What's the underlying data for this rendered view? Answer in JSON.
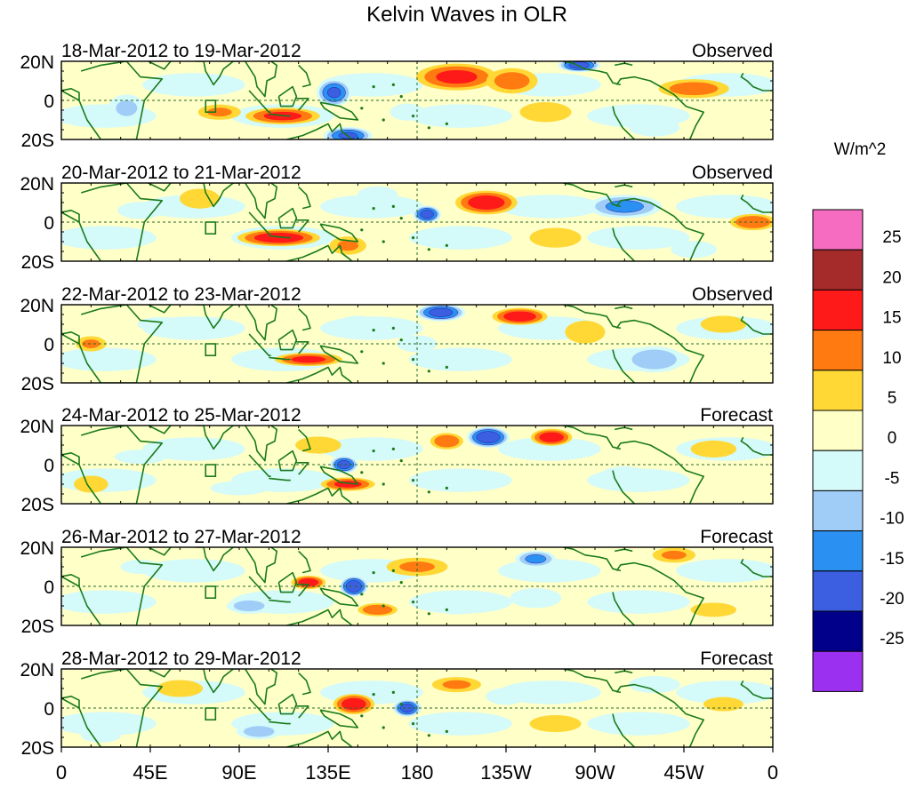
{
  "chart_data": {
    "type": "heatmap",
    "title": "Kelvin Waves in OLR",
    "variable": "OLR anomaly",
    "units": "W/m^2",
    "x_tick_labels": [
      "0",
      "45E",
      "90E",
      "135E",
      "180",
      "135W",
      "90W",
      "45W",
      "0"
    ],
    "y_tick_labels": [
      "20N",
      "0",
      "20S"
    ],
    "x_range_deg_east": [
      0,
      360
    ],
    "y_range_deg": [
      -20,
      20
    ],
    "colorbar": {
      "levels": [
        "25",
        "20",
        "15",
        "10",
        "5",
        "0",
        "-5",
        "-10",
        "-15",
        "-20",
        "-25"
      ],
      "colors": [
        "#f66cc0",
        "#a52a2a",
        "#ff1a1a",
        "#ff7a10",
        "#ffd836",
        "#ffffc8",
        "#d4fafa",
        "#a0cdf7",
        "#2a90f2",
        "#3b5fe0",
        "#00008b",
        "#9b30f0"
      ]
    },
    "panels": [
      {
        "period": "18-Mar-2012 to 19-Mar-2012",
        "status": "Observed",
        "anomalies": [
          {
            "lon": 200,
            "lat": 12,
            "val": 16,
            "rx": 24,
            "ry": 8
          },
          {
            "lon": 228,
            "lat": 10,
            "val": 12,
            "rx": 16,
            "ry": 8
          },
          {
            "lon": 138,
            "lat": 4,
            "val": -20,
            "rx": 10,
            "ry": 8
          },
          {
            "lon": 262,
            "lat": 18,
            "val": -22,
            "rx": 12,
            "ry": 4
          },
          {
            "lon": 112,
            "lat": -8,
            "val": 16,
            "rx": 22,
            "ry": 5
          },
          {
            "lon": 80,
            "lat": -6,
            "val": 10,
            "rx": 14,
            "ry": 5
          },
          {
            "lon": 145,
            "lat": -18,
            "val": -20,
            "rx": 14,
            "ry": 5
          },
          {
            "lon": 33,
            "lat": -4,
            "val": -10,
            "rx": 12,
            "ry": 9
          },
          {
            "lon": 320,
            "lat": 6,
            "val": 12,
            "rx": 22,
            "ry": 6
          },
          {
            "lon": 175,
            "lat": -6,
            "val": -8,
            "rx": 12,
            "ry": 6
          },
          {
            "lon": 245,
            "lat": -6,
            "val": 8,
            "rx": 18,
            "ry": 7
          },
          {
            "lon": 300,
            "lat": -14,
            "val": -6,
            "rx": 20,
            "ry": 7
          }
        ]
      },
      {
        "period": "20-Mar-2012 to 21-Mar-2012",
        "status": "Observed",
        "anomalies": [
          {
            "lon": 215,
            "lat": 10,
            "val": 18,
            "rx": 18,
            "ry": 7
          },
          {
            "lon": 185,
            "lat": 4,
            "val": -22,
            "rx": 8,
            "ry": 5
          },
          {
            "lon": 110,
            "lat": -8,
            "val": 18,
            "rx": 24,
            "ry": 5
          },
          {
            "lon": 145,
            "lat": -12,
            "val": 10,
            "rx": 12,
            "ry": 6
          },
          {
            "lon": 285,
            "lat": 8,
            "val": -16,
            "rx": 22,
            "ry": 7
          },
          {
            "lon": 350,
            "lat": 0,
            "val": 14,
            "rx": 14,
            "ry": 5
          },
          {
            "lon": 40,
            "lat": 6,
            "val": -8,
            "rx": 16,
            "ry": 6
          },
          {
            "lon": 70,
            "lat": 12,
            "val": 8,
            "rx": 14,
            "ry": 7
          },
          {
            "lon": 250,
            "lat": -8,
            "val": 8,
            "rx": 18,
            "ry": 7
          },
          {
            "lon": 160,
            "lat": 14,
            "val": -8,
            "rx": 14,
            "ry": 6
          },
          {
            "lon": 320,
            "lat": -14,
            "val": -8,
            "rx": 16,
            "ry": 6
          }
        ]
      },
      {
        "period": "22-Mar-2012 to 23-Mar-2012",
        "status": "Observed",
        "anomalies": [
          {
            "lon": 192,
            "lat": 16,
            "val": -22,
            "rx": 14,
            "ry": 5
          },
          {
            "lon": 232,
            "lat": 14,
            "val": 18,
            "rx": 16,
            "ry": 5
          },
          {
            "lon": 125,
            "lat": -8,
            "val": 16,
            "rx": 20,
            "ry": 4
          },
          {
            "lon": 180,
            "lat": 0,
            "val": -8,
            "rx": 14,
            "ry": 6
          },
          {
            "lon": 300,
            "lat": -8,
            "val": -14,
            "rx": 18,
            "ry": 8
          },
          {
            "lon": 15,
            "lat": 0,
            "val": 10,
            "rx": 10,
            "ry": 5
          },
          {
            "lon": 50,
            "lat": 10,
            "val": -8,
            "rx": 16,
            "ry": 5
          },
          {
            "lon": 265,
            "lat": 6,
            "val": 8,
            "rx": 14,
            "ry": 8
          },
          {
            "lon": 150,
            "lat": 10,
            "val": -8,
            "rx": 14,
            "ry": 6
          },
          {
            "lon": 335,
            "lat": 10,
            "val": 8,
            "rx": 16,
            "ry": 6
          }
        ]
      },
      {
        "period": "24-Mar-2012 to 25-Mar-2012",
        "status": "Forecast",
        "anomalies": [
          {
            "lon": 216,
            "lat": 14,
            "val": -24,
            "rx": 12,
            "ry": 6
          },
          {
            "lon": 195,
            "lat": 12,
            "val": 14,
            "rx": 10,
            "ry": 5
          },
          {
            "lon": 248,
            "lat": 14,
            "val": 18,
            "rx": 12,
            "ry": 5
          },
          {
            "lon": 143,
            "lat": 0,
            "val": -22,
            "rx": 8,
            "ry": 5
          },
          {
            "lon": 145,
            "lat": -10,
            "val": 16,
            "rx": 16,
            "ry": 4
          },
          {
            "lon": 130,
            "lat": 10,
            "val": 8,
            "rx": 16,
            "ry": 6
          },
          {
            "lon": 40,
            "lat": 4,
            "val": -8,
            "rx": 18,
            "ry": 5
          },
          {
            "lon": 90,
            "lat": -12,
            "val": -8,
            "rx": 20,
            "ry": 5
          },
          {
            "lon": 285,
            "lat": -6,
            "val": -8,
            "rx": 18,
            "ry": 7
          },
          {
            "lon": 15,
            "lat": -10,
            "val": 8,
            "rx": 12,
            "ry": 6
          },
          {
            "lon": 330,
            "lat": 8,
            "val": 8,
            "rx": 16,
            "ry": 6
          }
        ]
      },
      {
        "period": "26-Mar-2012 to 27-Mar-2012",
        "status": "Forecast",
        "anomalies": [
          {
            "lon": 148,
            "lat": 0,
            "val": -24,
            "rx": 8,
            "ry": 6
          },
          {
            "lon": 125,
            "lat": 2,
            "val": 18,
            "rx": 10,
            "ry": 4
          },
          {
            "lon": 240,
            "lat": 14,
            "val": -16,
            "rx": 12,
            "ry": 5
          },
          {
            "lon": 160,
            "lat": -12,
            "val": 14,
            "rx": 12,
            "ry": 4
          },
          {
            "lon": 180,
            "lat": 10,
            "val": 10,
            "rx": 20,
            "ry": 6
          },
          {
            "lon": 95,
            "lat": -10,
            "val": -12,
            "rx": 14,
            "ry": 5
          },
          {
            "lon": 310,
            "lat": 16,
            "val": 10,
            "rx": 14,
            "ry": 5
          },
          {
            "lon": 240,
            "lat": -6,
            "val": -8,
            "rx": 18,
            "ry": 7
          },
          {
            "lon": 40,
            "lat": 10,
            "val": -8,
            "rx": 14,
            "ry": 5
          },
          {
            "lon": 200,
            "lat": -10,
            "val": -8,
            "rx": 16,
            "ry": 6
          },
          {
            "lon": 330,
            "lat": -12,
            "val": 8,
            "rx": 16,
            "ry": 5
          }
        ]
      },
      {
        "period": "28-Mar-2012 to 29-Mar-2012",
        "status": "Forecast",
        "anomalies": [
          {
            "lon": 148,
            "lat": 2,
            "val": 18,
            "rx": 12,
            "ry": 6
          },
          {
            "lon": 175,
            "lat": 0,
            "val": -22,
            "rx": 8,
            "ry": 5
          },
          {
            "lon": 100,
            "lat": -12,
            "val": -12,
            "rx": 14,
            "ry": 5
          },
          {
            "lon": 200,
            "lat": 12,
            "val": 10,
            "rx": 16,
            "ry": 5
          },
          {
            "lon": 300,
            "lat": 12,
            "val": -8,
            "rx": 18,
            "ry": 6
          },
          {
            "lon": 60,
            "lat": 10,
            "val": 8,
            "rx": 16,
            "ry": 6
          },
          {
            "lon": 20,
            "lat": -14,
            "val": -8,
            "rx": 14,
            "ry": 5
          },
          {
            "lon": 250,
            "lat": -8,
            "val": 8,
            "rx": 18,
            "ry": 6
          },
          {
            "lon": 335,
            "lat": 2,
            "val": 8,
            "rx": 14,
            "ry": 5
          },
          {
            "lon": 225,
            "lat": 6,
            "val": -8,
            "rx": 14,
            "ry": 6
          }
        ]
      }
    ]
  }
}
